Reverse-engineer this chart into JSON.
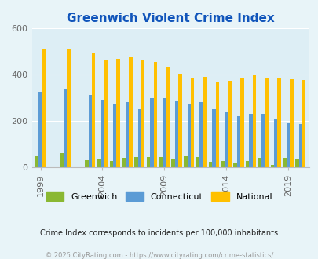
{
  "title": "Greenwich Violent Crime Index",
  "plot_years": [
    1999,
    2000,
    2001,
    2002,
    2003,
    2004,
    2005,
    2006,
    2007,
    2008,
    2009,
    2010,
    2011,
    2012,
    2013,
    2014,
    2015,
    2016,
    2017,
    2018,
    2019,
    2020
  ],
  "greenwich": [
    48,
    0,
    62,
    0,
    30,
    35,
    25,
    40,
    45,
    42,
    42,
    37,
    48,
    42,
    20,
    28,
    15,
    28,
    40,
    10,
    40,
    35
  ],
  "connecticut": [
    325,
    0,
    335,
    0,
    312,
    290,
    270,
    280,
    250,
    300,
    300,
    285,
    270,
    283,
    252,
    237,
    220,
    230,
    230,
    210,
    190,
    185
  ],
  "national": [
    510,
    0,
    510,
    0,
    497,
    462,
    469,
    474,
    466,
    455,
    430,
    404,
    387,
    390,
    365,
    374,
    383,
    398,
    383,
    382,
    379,
    376
  ],
  "xtick_years": [
    1999,
    2004,
    2009,
    2014,
    2019
  ],
  "ylim": [
    0,
    600
  ],
  "yticks": [
    0,
    200,
    400,
    600
  ],
  "bar_width": 0.28,
  "colors": {
    "greenwich": "#8ab832",
    "connecticut": "#5b9bd5",
    "national": "#ffc000"
  },
  "bg_color": "#e8f4f8",
  "plot_bg": "#ddeef5",
  "title_color": "#1155bb",
  "subtitle": "Crime Index corresponds to incidents per 100,000 inhabitants",
  "footer": "© 2025 CityRating.com - https://www.cityrating.com/crime-statistics/",
  "subtitle_color": "#222222",
  "footer_color": "#999999"
}
